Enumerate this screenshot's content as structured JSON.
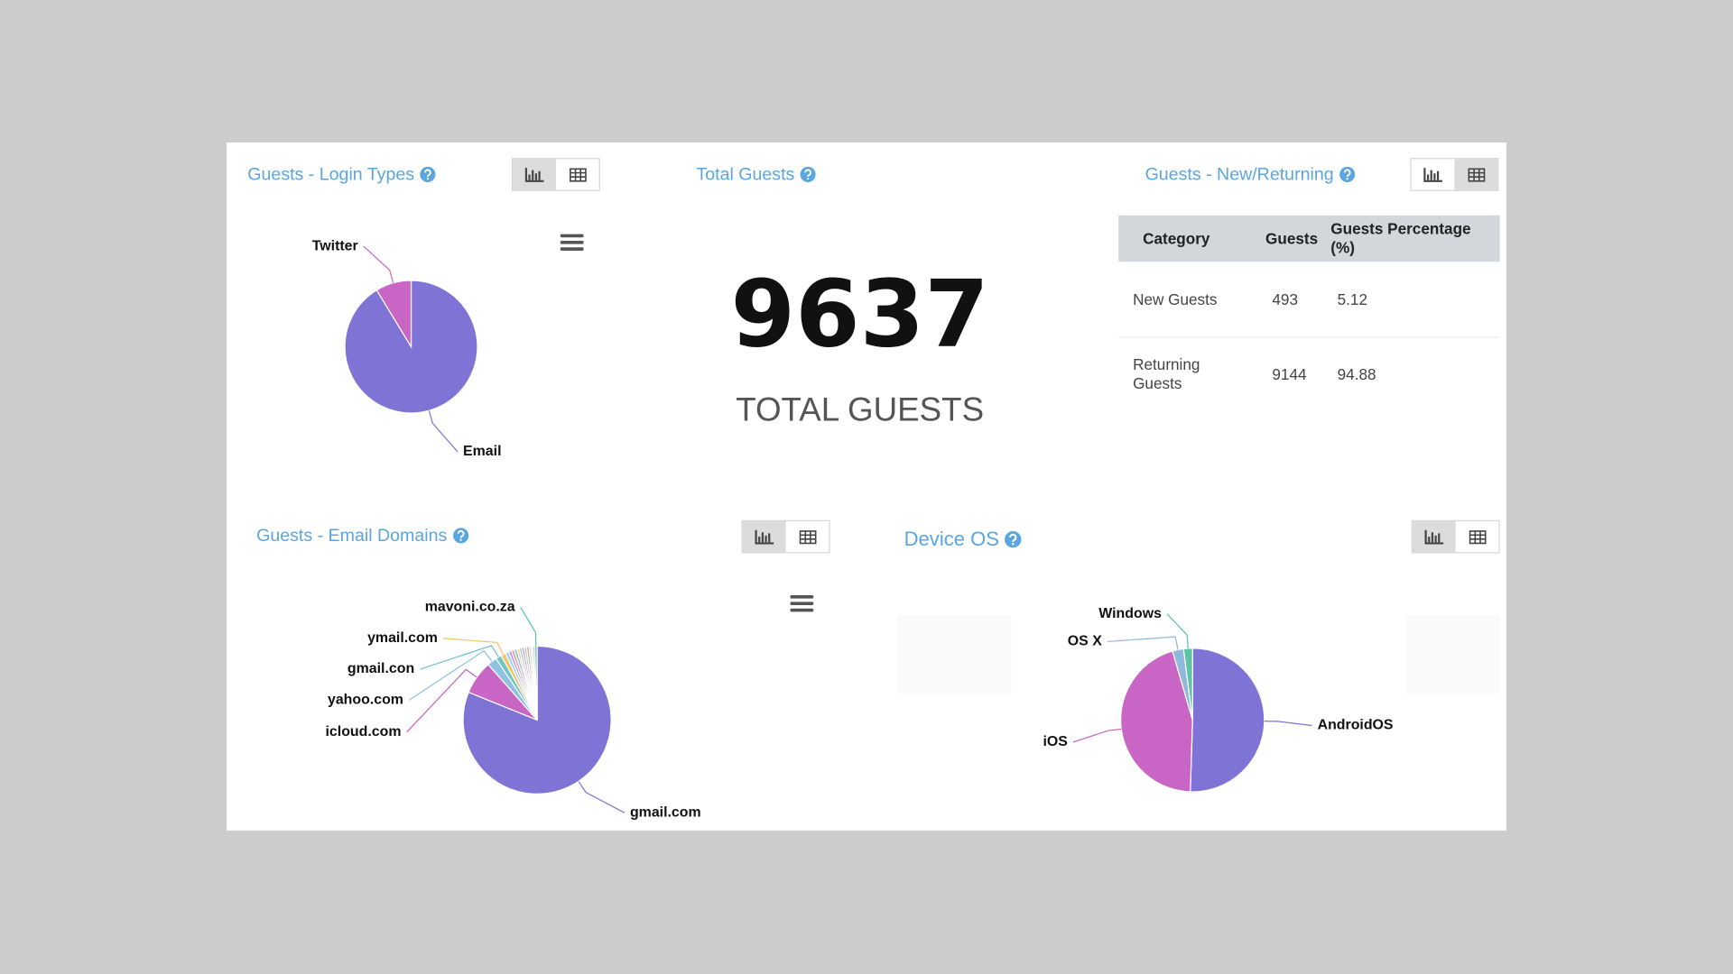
{
  "total_guests": {
    "title": "Total Guests",
    "value": 9637,
    "label": "TOTAL GUESTS"
  },
  "table": {
    "title": "Guests - New/Returning",
    "columns": [
      "Category",
      "Guests",
      "Guests Percentage (%)"
    ],
    "rows": [
      [
        "New Guests",
        493,
        5.12
      ],
      [
        "Returning Guests",
        9144,
        94.88
      ]
    ]
  },
  "chart_data": [
    {
      "type": "pie",
      "title": "Guests - Login Types",
      "categories": [
        "Email",
        "Twitter"
      ],
      "values": [
        91.3,
        8.7
      ],
      "colors": [
        "#8073d6",
        "#c965c4"
      ]
    },
    {
      "type": "pie",
      "title": "Guests - Email Domains",
      "categories": [
        "gmail.com",
        "icloud.com",
        "yahoo.com",
        "gmail.con",
        "ymail.com",
        null,
        null,
        null,
        null,
        null,
        null,
        null,
        null,
        null,
        null,
        null,
        null,
        "mavoni.co.za"
      ],
      "values": [
        77,
        7,
        2,
        1.2,
        1,
        0.7,
        0.6,
        0.6,
        0.6,
        0.5,
        0.5,
        0.5,
        0.5,
        0.5,
        0.4,
        0.4,
        0.4,
        0.5
      ],
      "colors": [
        "#8073d6",
        "#c965c4",
        "#8fc1e3",
        "#6fc7c0",
        "#f2c46d",
        "#9ad0f5",
        "#b39ddb",
        "#f48fb1",
        "#80cbc4",
        "#ffcc80",
        "#90caf9",
        "#ce93d8",
        "#a5d6a7",
        "#ef9a9a",
        "#81d4fa",
        "#e6ee9c",
        "#c5b3e6",
        "#5cc4a4"
      ]
    },
    {
      "type": "pie",
      "title": "Device OS",
      "categories": [
        "AndroidOS",
        "iOS",
        "OS X",
        "Windows"
      ],
      "values": [
        50.5,
        45,
        2.5,
        2
      ],
      "colors": [
        "#8073d6",
        "#c965c4",
        "#8fb8dc",
        "#5cc4a4"
      ]
    }
  ]
}
